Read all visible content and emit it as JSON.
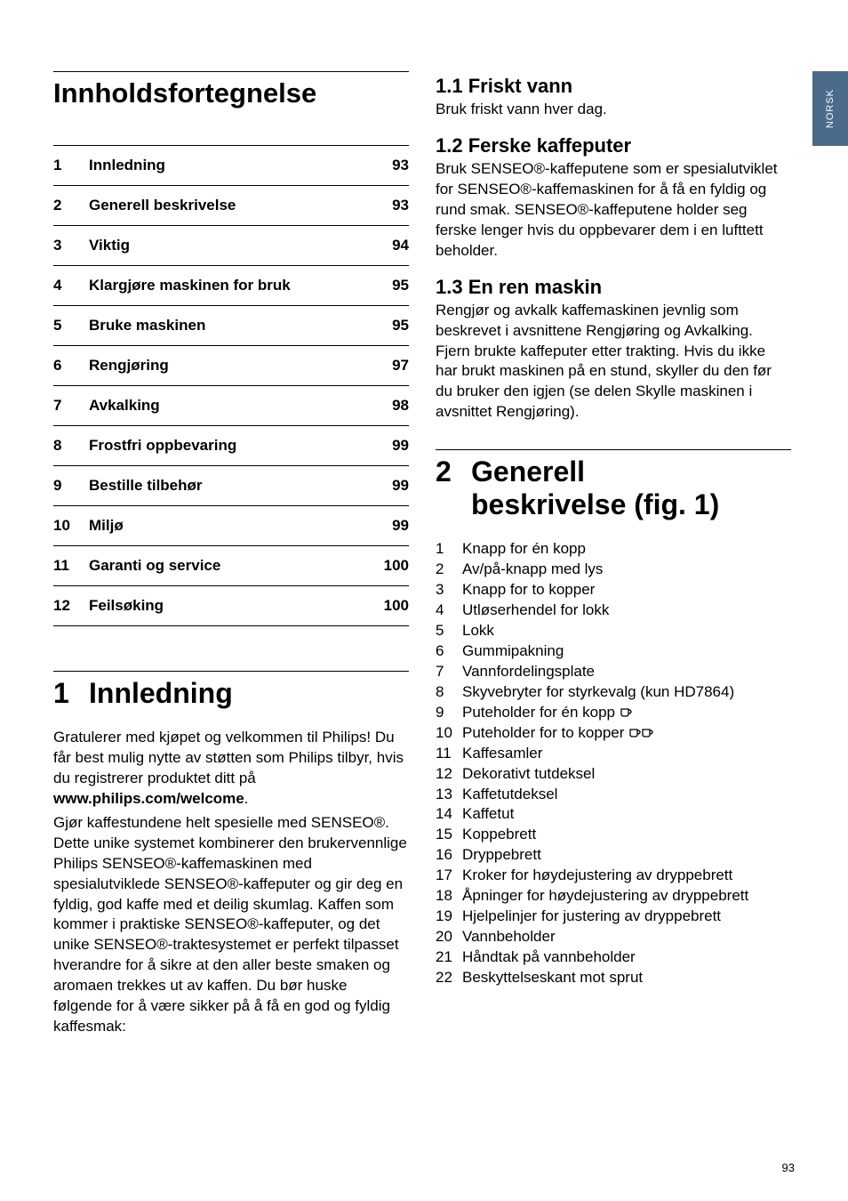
{
  "language_tab": "NORSK",
  "toc_title": "Innholdsfortegnelse",
  "toc": [
    {
      "num": "1",
      "label": "Innledning",
      "page": "93"
    },
    {
      "num": "2",
      "label": "Generell beskrivelse",
      "page": "93"
    },
    {
      "num": "3",
      "label": "Viktig",
      "page": "94"
    },
    {
      "num": "4",
      "label": "Klargjøre maskinen for bruk",
      "page": "95"
    },
    {
      "num": "5",
      "label": "Bruke maskinen",
      "page": "95"
    },
    {
      "num": "6",
      "label": "Rengjøring",
      "page": "97"
    },
    {
      "num": "7",
      "label": "Avkalking",
      "page": "98"
    },
    {
      "num": "8",
      "label": "Frostfri oppbevaring",
      "page": "99"
    },
    {
      "num": "9",
      "label": "Bestille tilbehør",
      "page": "99"
    },
    {
      "num": "10",
      "label": "Miljø",
      "page": "99"
    },
    {
      "num": "11",
      "label": "Garanti og service",
      "page": "100"
    },
    {
      "num": "12",
      "label": "Feilsøking",
      "page": "100"
    }
  ],
  "section1": {
    "num": "1",
    "title": "Innledning",
    "para1_a": "Gratulerer med kjøpet og velkommen til Philips! Du får best mulig nytte av støtten som Philips tilbyr, hvis du registrerer produktet ditt på ",
    "para1_bold": "www.philips.com/welcome",
    "para1_b": ".",
    "para2": "Gjør kaffestundene helt spesielle med SENSEO®. Dette unike systemet kombinerer den brukervennlige Philips SENSEO®-kaffemaskinen med spesialutviklede SENSEO®-kaffeputer og gir deg en fyldig, god kaffe med et deilig skumlag. Kaffen som kommer i praktiske SENSEO®-kaffeputer, og det unike SENSEO®-traktesystemet er perfekt tilpasset hverandre for å sikre at den aller beste smaken og aromaen trekkes ut av kaffen. Du bør huske følgende for å være sikker på å få en god og fyldig kaffesmak:"
  },
  "subsections": {
    "s11": {
      "title": "1.1 Friskt vann",
      "text": "Bruk friskt vann hver dag."
    },
    "s12": {
      "title": "1.2 Ferske kaffeputer",
      "text": "Bruk SENSEO®-kaffeputene som er spesialutviklet for SENSEO®-kaffemaskinen for å få en fyldig og rund smak. SENSEO®-kaffeputene holder seg ferske lenger hvis du oppbevarer dem i en lufttett beholder."
    },
    "s13": {
      "title": "1.3 En ren maskin",
      "text": "Rengjør og avkalk kaffemaskinen jevnlig som beskrevet i avsnittene Rengjøring og Avkalking. Fjern brukte kaffeputer etter trakting. Hvis du ikke har brukt maskinen på en stund, skyller du den før du bruker den igjen (se delen Skylle maskinen i avsnittet Rengjøring)."
    }
  },
  "section2": {
    "num": "2",
    "title_line1": "Generell",
    "title_line2": "beskrivelse (fig. 1)",
    "items": [
      {
        "num": "1",
        "label": "Knapp for én kopp"
      },
      {
        "num": "2",
        "label": "Av/på-knapp med lys"
      },
      {
        "num": "3",
        "label": "Knapp for to kopper"
      },
      {
        "num": "4",
        "label": "Utløserhendel for lokk"
      },
      {
        "num": "5",
        "label": "Lokk"
      },
      {
        "num": "6",
        "label": "Gummipakning"
      },
      {
        "num": "7",
        "label": "Vannfordelingsplate"
      },
      {
        "num": "8",
        "label": "Skyvebryter for styrkevalg (kun HD7864)"
      },
      {
        "num": "9",
        "label": "Puteholder for én kopp ",
        "icon": "cup1"
      },
      {
        "num": "10",
        "label": "Puteholder for to kopper ",
        "icon": "cup2"
      },
      {
        "num": "11",
        "label": "Kaffesamler"
      },
      {
        "num": "12",
        "label": "Dekorativt tutdeksel"
      },
      {
        "num": "13",
        "label": "Kaffetutdeksel"
      },
      {
        "num": "14",
        "label": "Kaffetut"
      },
      {
        "num": "15",
        "label": "Koppebrett"
      },
      {
        "num": "16",
        "label": "Dryppebrett"
      },
      {
        "num": "17",
        "label": "Kroker for høydejustering av dryppebrett"
      },
      {
        "num": "18",
        "label": "Åpninger for høydejustering av dryppebrett"
      },
      {
        "num": "19",
        "label": "Hjelpelinjer for justering av dryppebrett"
      },
      {
        "num": "20",
        "label": "Vannbeholder"
      },
      {
        "num": "21",
        "label": "Håndtak på vannbeholder"
      },
      {
        "num": "22",
        "label": "Beskyttelseskant mot sprut"
      }
    ]
  },
  "page_number": "93",
  "colors": {
    "tab_bg": "#4a6b8a",
    "tab_text": "#ffffff",
    "text": "#000000",
    "bg": "#ffffff"
  }
}
